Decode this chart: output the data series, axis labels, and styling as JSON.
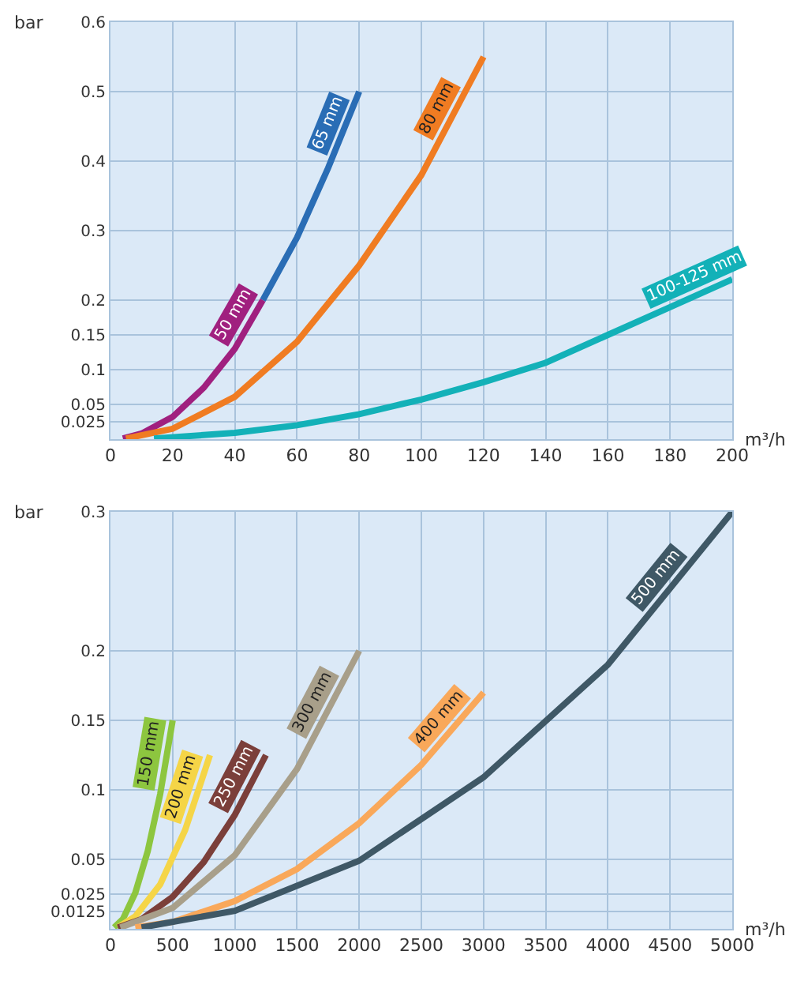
{
  "chart_data": [
    {
      "type": "line",
      "xlabel": "m³/h",
      "ylabel": "bar",
      "xlim": [
        0,
        200
      ],
      "ylim": [
        0,
        0.6
      ],
      "xticks": [
        0,
        20,
        40,
        60,
        80,
        100,
        120,
        140,
        160,
        180,
        200
      ],
      "yticks": [
        0.025,
        0.05,
        0.1,
        0.15,
        0.2,
        0.3,
        0.4,
        0.5,
        0.6
      ],
      "grid": true,
      "legend": false,
      "marker": "none",
      "line_style": "solid",
      "series": [
        {
          "name": "65 mm",
          "color": "#2a6db5",
          "x": [
            49,
            60,
            70,
            80
          ],
          "values": [
            0.2,
            0.29,
            0.39,
            0.5
          ]
        },
        {
          "name": "50 mm",
          "color": "#a0207f",
          "x": [
            4,
            10,
            20,
            30,
            40,
            49
          ],
          "values": [
            0.001,
            0.008,
            0.032,
            0.074,
            0.13,
            0.2
          ]
        },
        {
          "name": "80 mm",
          "color": "#f07c22",
          "x": [
            5,
            20,
            40,
            60,
            80,
            100,
            120
          ],
          "values": [
            0.001,
            0.015,
            0.061,
            0.14,
            0.25,
            0.38,
            0.55
          ]
        },
        {
          "name": "100-125 mm",
          "color": "#13b1b8",
          "x": [
            14,
            40,
            60,
            80,
            100,
            120,
            140,
            160,
            180,
            200
          ],
          "values": [
            0.001,
            0.009,
            0.02,
            0.036,
            0.057,
            0.082,
            0.11,
            0.15,
            0.19,
            0.23
          ]
        }
      ]
    },
    {
      "type": "line",
      "xlabel": "m³/h",
      "ylabel": "bar",
      "xlim": [
        0,
        5000
      ],
      "ylim": [
        0,
        0.3
      ],
      "xticks": [
        0,
        500,
        1000,
        1500,
        2000,
        2500,
        3000,
        3500,
        4000,
        4500,
        5000
      ],
      "yticks": [
        0.0125,
        0.025,
        0.05,
        0.1,
        0.15,
        0.2,
        0.3
      ],
      "grid": true,
      "legend": false,
      "marker": "none",
      "line_style": "solid",
      "series": [
        {
          "name": "150 mm",
          "color": "#8dc63f",
          "x": [
            30,
            100,
            200,
            300,
            400,
            500
          ],
          "values": [
            0.001,
            0.007,
            0.026,
            0.056,
            0.097,
            0.15
          ]
        },
        {
          "name": "200 mm",
          "color": "#f5d547",
          "x": [
            60,
            200,
            400,
            600,
            800
          ],
          "values": [
            0.001,
            0.009,
            0.032,
            0.071,
            0.125
          ]
        },
        {
          "name": "250 mm",
          "color": "#7b3f3a",
          "x": [
            60,
            250,
            500,
            750,
            1000,
            1250
          ],
          "values": [
            0.001,
            0.007,
            0.023,
            0.048,
            0.082,
            0.125
          ]
        },
        {
          "name": "300 mm",
          "color": "#a89f8a",
          "x": [
            80,
            500,
            1000,
            1500,
            2000
          ],
          "values": [
            0.001,
            0.015,
            0.053,
            0.115,
            0.2
          ]
        },
        {
          "name": "400 mm",
          "color": "#f9a85a",
          "x": [
            200,
            500,
            1000,
            1500,
            2000,
            2500,
            3000
          ],
          "values": [
            0.001,
            0.005,
            0.02,
            0.043,
            0.076,
            0.118,
            0.17
          ]
        },
        {
          "name": "500 mm",
          "color": "#3f5866",
          "x": [
            250,
            1000,
            2000,
            3000,
            4000,
            5000
          ],
          "values": [
            0.001,
            0.013,
            0.049,
            0.109,
            0.19,
            0.3
          ]
        }
      ]
    }
  ]
}
